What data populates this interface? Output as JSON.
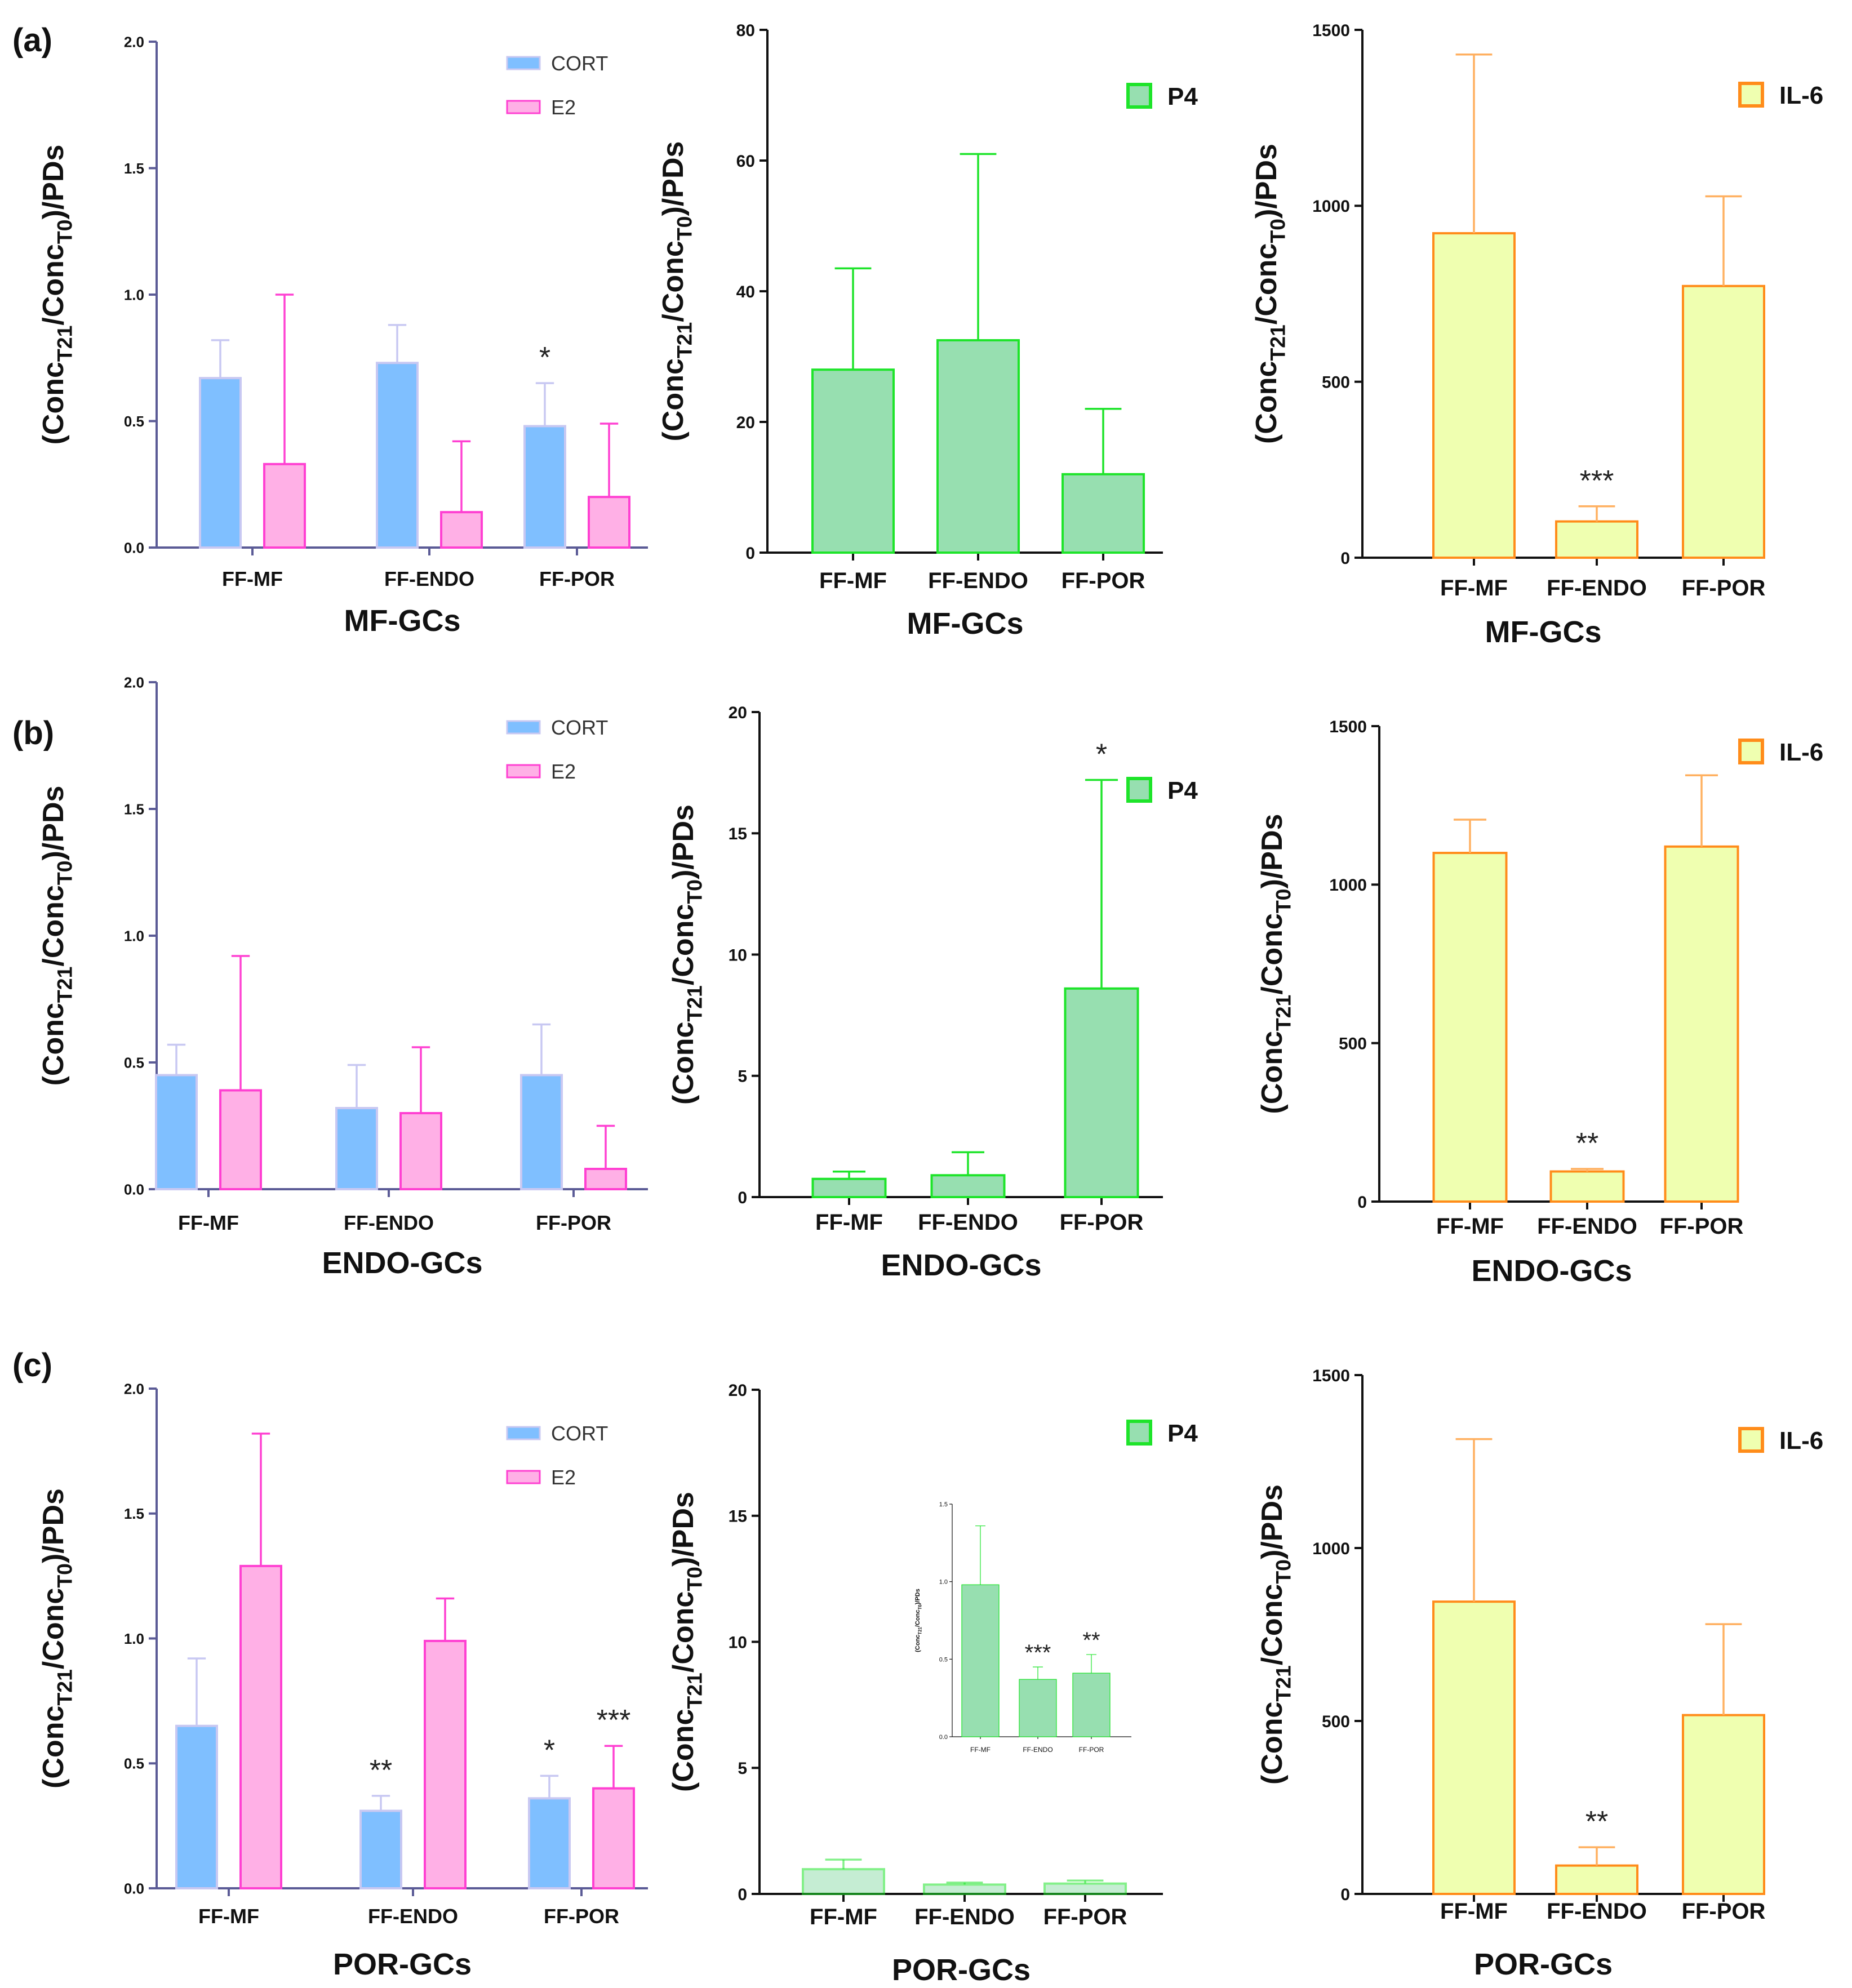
{
  "panel_labels": [
    "(a)",
    "(b)",
    "(c)"
  ],
  "colors": {
    "cort_fill": "#7fbfff",
    "cort_stroke": "#c8c8f2",
    "cort_err": "#c8c8f2",
    "e2_fill": "#ffb0e6",
    "e2_stroke": "#ff40d2",
    "e2_err": "#ff40d2",
    "p4_fill": "#97dfb0",
    "p4_stroke": "#1ee42a",
    "p4_err": "#1ee42a",
    "il6_fill": "#efffb0",
    "il6_stroke": "#ff8c1a",
    "il6_err": "#ffb060",
    "axis_purple": "#5b5b96",
    "axis_black": "#111111"
  },
  "chart_data": [
    {
      "id": "a-steroids",
      "type": "bar",
      "xlabel": "MF-GCs",
      "ylabel": "(Conc_T21/Conc_T0)/PDs",
      "ylim": [
        0,
        2.0
      ],
      "yticks": [
        "0.0",
        "0.5",
        "1.0",
        "1.5",
        "2.0"
      ],
      "categories": [
        "FF-MF",
        "FF-ENDO",
        "FF-POR"
      ],
      "series": [
        {
          "name": "CORT",
          "values": [
            0.67,
            0.73,
            0.48
          ],
          "errors": [
            0.15,
            0.15,
            0.17
          ]
        },
        {
          "name": "E2",
          "values": [
            0.33,
            0.14,
            0.2
          ],
          "errors": [
            0.67,
            0.28,
            0.29
          ]
        }
      ],
      "annotations": [
        {
          "series": 0,
          "index": 2,
          "text": "*"
        }
      ]
    },
    {
      "id": "a-p4",
      "type": "bar",
      "xlabel": "MF-GCs",
      "ylabel": "(Conc_T21/Conc_T0)/PDs",
      "ylim": [
        0,
        80
      ],
      "yticks": [
        "0",
        "20",
        "40",
        "60",
        "80"
      ],
      "categories": [
        "FF-MF",
        "FF-ENDO",
        "FF-POR"
      ],
      "series": [
        {
          "name": "P4",
          "values": [
            28,
            32.5,
            12
          ],
          "errors": [
            15.5,
            28.5,
            10
          ]
        }
      ],
      "annotations": []
    },
    {
      "id": "a-il6",
      "type": "bar",
      "xlabel": "MF-GCs",
      "ylabel": "(Conc_T21/Conc_T0)/PDs",
      "ylim": [
        0,
        1500
      ],
      "yticks": [
        "0",
        "500",
        "1000",
        "1500"
      ],
      "categories": [
        "FF-MF",
        "FF-ENDO",
        "FF-POR"
      ],
      "series": [
        {
          "name": "IL-6",
          "values": [
            922,
            103,
            772
          ],
          "errors": [
            508,
            43,
            255
          ]
        }
      ],
      "annotations": [
        {
          "series": 0,
          "index": 1,
          "text": "***"
        }
      ]
    },
    {
      "id": "b-steroids",
      "type": "bar",
      "xlabel": "ENDO-GCs",
      "ylabel": "(Conc_T21/Conc_T0)/PDs",
      "ylim": [
        0,
        2.0
      ],
      "yticks": [
        "0.0",
        "0.5",
        "1.0",
        "1.5",
        "2.0"
      ],
      "categories": [
        "FF-MF",
        "FF-ENDO",
        "FF-POR"
      ],
      "series": [
        {
          "name": "CORT",
          "values": [
            0.45,
            0.32,
            0.45
          ],
          "errors": [
            0.12,
            0.17,
            0.2
          ]
        },
        {
          "name": "E2",
          "values": [
            0.39,
            0.3,
            0.08
          ],
          "errors": [
            0.53,
            0.26,
            0.17
          ]
        }
      ],
      "annotations": []
    },
    {
      "id": "b-p4",
      "type": "bar",
      "xlabel": "ENDO-GCs",
      "ylabel": "(Conc_T21/Conc_T0)/PDs",
      "ylim": [
        0,
        20
      ],
      "yticks": [
        "0",
        "5",
        "10",
        "15",
        "20"
      ],
      "categories": [
        "FF-MF",
        "FF-ENDO",
        "FF-POR"
      ],
      "series": [
        {
          "name": "P4",
          "values": [
            0.75,
            0.9,
            8.6
          ],
          "errors": [
            0.3,
            0.95,
            8.6
          ]
        }
      ],
      "annotations": [
        {
          "series": 0,
          "index": 2,
          "text": "*"
        }
      ]
    },
    {
      "id": "b-il6",
      "type": "bar",
      "xlabel": "ENDO-GCs",
      "ylabel": "(Conc_T21/Conc_T0)/PDs",
      "ylim": [
        0,
        1500
      ],
      "yticks": [
        "0",
        "500",
        "1000",
        "1500"
      ],
      "categories": [
        "FF-MF",
        "FF-ENDO",
        "FF-POR"
      ],
      "series": [
        {
          "name": "IL-6",
          "values": [
            1100,
            95,
            1120
          ],
          "errors": [
            105,
            8,
            225
          ]
        }
      ],
      "annotations": [
        {
          "series": 0,
          "index": 1,
          "text": "**"
        }
      ]
    },
    {
      "id": "c-steroids",
      "type": "bar",
      "xlabel": "POR-GCs",
      "ylabel": "(Conc_T21/Conc_T0)/PDs",
      "ylim": [
        0,
        2.0
      ],
      "yticks": [
        "0.0",
        "0.5",
        "1.0",
        "1.5",
        "2.0"
      ],
      "categories": [
        "FF-MF",
        "FF-ENDO",
        "FF-POR"
      ],
      "series": [
        {
          "name": "CORT",
          "values": [
            0.65,
            0.31,
            0.36
          ],
          "errors": [
            0.27,
            0.06,
            0.09
          ]
        },
        {
          "name": "E2",
          "values": [
            1.29,
            0.99,
            0.4
          ],
          "errors": [
            0.53,
            0.17,
            0.17
          ]
        }
      ],
      "annotations": [
        {
          "series": 0,
          "index": 1,
          "text": "**"
        },
        {
          "series": 0,
          "index": 2,
          "text": "*"
        },
        {
          "series": 1,
          "index": 2,
          "text": "***"
        }
      ]
    },
    {
      "id": "c-p4",
      "type": "bar",
      "xlabel": "POR-GCs",
      "ylabel": "(Conc_T21/Conc_T0)/PDs",
      "ylim": [
        0,
        20
      ],
      "yticks": [
        "0",
        "5",
        "10",
        "15",
        "20"
      ],
      "categories": [
        "FF-MF",
        "FF-ENDO",
        "FF-POR"
      ],
      "series": [
        {
          "name": "P4",
          "values": [
            0.98,
            0.37,
            0.41
          ],
          "errors": [
            0.38,
            0.08,
            0.12
          ]
        }
      ],
      "annotations": []
    },
    {
      "id": "c-p4-inset",
      "type": "bar",
      "xlabel": "",
      "ylabel": "(Conc_T21/Conc_T0)/PDs",
      "ylim": [
        0,
        1.5
      ],
      "yticks": [
        "0.0",
        "0.5",
        "1.0",
        "1.5"
      ],
      "categories": [
        "FF-MF",
        "FF-ENDO",
        "FF-POR"
      ],
      "series": [
        {
          "name": "P4",
          "values": [
            0.98,
            0.37,
            0.41
          ],
          "errors": [
            0.38,
            0.08,
            0.12
          ]
        }
      ],
      "annotations": [
        {
          "series": 0,
          "index": 1,
          "text": "***"
        },
        {
          "series": 0,
          "index": 2,
          "text": "**"
        }
      ]
    },
    {
      "id": "c-il6",
      "type": "bar",
      "xlabel": "POR-GCs",
      "ylabel": "(Conc_T21/Conc_T0)/PDs",
      "ylim": [
        0,
        1500
      ],
      "yticks": [
        "0",
        "500",
        "1000",
        "1500"
      ],
      "categories": [
        "FF-MF",
        "FF-ENDO",
        "FF-POR"
      ],
      "series": [
        {
          "name": "IL-6",
          "values": [
            845,
            82,
            517
          ],
          "errors": [
            470,
            53,
            263
          ]
        }
      ],
      "annotations": [
        {
          "series": 0,
          "index": 1,
          "text": "**"
        }
      ]
    }
  ]
}
